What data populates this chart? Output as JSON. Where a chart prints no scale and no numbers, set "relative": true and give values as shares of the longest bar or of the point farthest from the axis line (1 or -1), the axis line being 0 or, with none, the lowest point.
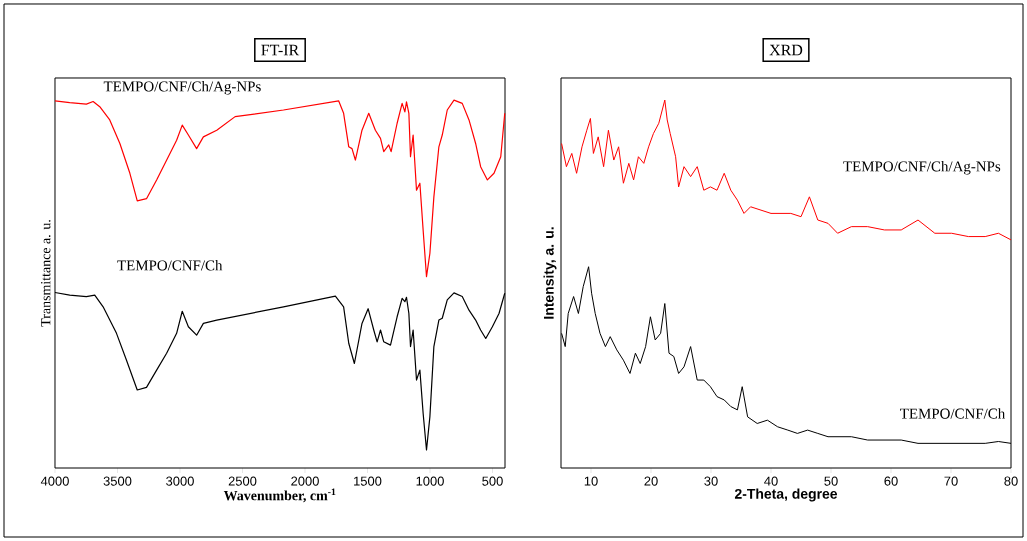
{
  "chart_data": [
    {
      "type": "line",
      "title": "FT-IR",
      "xlabel": "Wavenumber, cm$^{-1}$",
      "ylabel": "Transmittance a. u.",
      "relative": true,
      "xlim": [
        4000,
        400
      ],
      "xticks": [
        4000,
        3500,
        3000,
        2500,
        2000,
        1500,
        1000,
        500
      ],
      "series": [
        {
          "name": "TEMPO/CNF/Ch/Ag-NPs",
          "color": "#ff0000",
          "x": [
            4000,
            3882,
            3749,
            3695,
            3642,
            3562,
            3481,
            3401,
            3342,
            3268,
            3187,
            3107,
            3027,
            2982,
            2933,
            2867,
            2813,
            2706,
            2559,
            2172,
            1731,
            1691,
            1650,
            1624,
            1597,
            1544,
            1490,
            1437,
            1396,
            1370,
            1330,
            1311,
            1263,
            1223,
            1201,
            1188,
            1169,
            1156,
            1135,
            1108,
            1081,
            1055,
            1028,
            1001,
            969,
            929,
            902,
            862,
            808,
            742,
            688,
            635,
            595,
            541,
            488,
            434,
            402
          ],
          "values": [
            0.998,
            0.993,
            0.989,
            0.996,
            0.982,
            0.946,
            0.882,
            0.801,
            0.726,
            0.732,
            0.783,
            0.837,
            0.891,
            0.932,
            0.905,
            0.868,
            0.9,
            0.918,
            0.955,
            0.973,
            0.998,
            0.964,
            0.873,
            0.868,
            0.837,
            0.918,
            0.964,
            0.918,
            0.896,
            0.86,
            0.878,
            0.86,
            0.937,
            0.991,
            0.968,
            0.995,
            0.964,
            0.846,
            0.905,
            0.755,
            0.774,
            0.647,
            0.52,
            0.583,
            0.737,
            0.873,
            0.905,
            0.973,
            1.0,
            0.991,
            0.946,
            0.882,
            0.819,
            0.783,
            0.801,
            0.846,
            0.964
          ]
        },
        {
          "name": "TEMPO/CNF/Ch",
          "color": "#000000",
          "x": [
            4000,
            3882,
            3749,
            3682,
            3615,
            3508,
            3428,
            3342,
            3268,
            3187,
            3107,
            3027,
            2982,
            2933,
            2867,
            2813,
            2706,
            2172,
            1757,
            1691,
            1650,
            1605,
            1544,
            1495,
            1450,
            1423,
            1396,
            1370,
            1316,
            1263,
            1223,
            1201,
            1188,
            1169,
            1156,
            1135,
            1108,
            1081,
            1055,
            1028,
            1001,
            969,
            929,
            902,
            862,
            808,
            742,
            688,
            635,
            595,
            554,
            501,
            448,
            402
          ],
          "values": [
            0.477,
            0.47,
            0.466,
            0.47,
            0.438,
            0.366,
            0.293,
            0.212,
            0.219,
            0.266,
            0.312,
            0.366,
            0.426,
            0.384,
            0.361,
            0.393,
            0.402,
            0.438,
            0.467,
            0.438,
            0.339,
            0.284,
            0.393,
            0.433,
            0.375,
            0.343,
            0.375,
            0.343,
            0.334,
            0.411,
            0.461,
            0.452,
            0.464,
            0.42,
            0.33,
            0.375,
            0.239,
            0.266,
            0.149,
            0.049,
            0.139,
            0.33,
            0.402,
            0.407,
            0.457,
            0.476,
            0.466,
            0.429,
            0.402,
            0.375,
            0.352,
            0.384,
            0.42,
            0.475
          ]
        }
      ]
    },
    {
      "type": "line",
      "title": "XRD",
      "xlabel": "2-Theta, degree",
      "ylabel": "Intensity, a. u.",
      "relative": true,
      "xlim": [
        5,
        80
      ],
      "xticks": [
        10,
        20,
        30,
        40,
        50,
        60,
        70,
        80
      ],
      "series": [
        {
          "name": "TEMPO/CNF/Ch/Ag-NPs",
          "color": "#ff0000",
          "x": [
            5.1,
            5.9,
            6.8,
            7.6,
            8.5,
            9.3,
            9.9,
            10.4,
            11.2,
            12.1,
            12.9,
            13.8,
            14.6,
            15.4,
            16.3,
            17.1,
            17.9,
            18.8,
            19.6,
            20.4,
            21.3,
            22.3,
            22.7,
            23.2,
            24.1,
            24.6,
            25.5,
            26.6,
            27.7,
            28.8,
            29.9,
            31.0,
            32.2,
            33.3,
            34.4,
            35.5,
            36.6,
            38.3,
            40.0,
            41.6,
            43.3,
            45.0,
            46.4,
            47.8,
            49.5,
            51.1,
            53.4,
            56.1,
            58.9,
            61.7,
            64.5,
            67.3,
            70.1,
            72.9,
            75.7,
            77.9,
            80.0
          ],
          "values": [
            0.882,
            0.819,
            0.855,
            0.801,
            0.873,
            0.918,
            0.95,
            0.855,
            0.9,
            0.819,
            0.918,
            0.837,
            0.873,
            0.774,
            0.828,
            0.783,
            0.846,
            0.828,
            0.873,
            0.909,
            0.937,
            1.0,
            0.946,
            0.909,
            0.846,
            0.764,
            0.819,
            0.792,
            0.819,
            0.755,
            0.764,
            0.755,
            0.801,
            0.755,
            0.728,
            0.692,
            0.71,
            0.701,
            0.692,
            0.692,
            0.692,
            0.683,
            0.737,
            0.674,
            0.665,
            0.638,
            0.656,
            0.656,
            0.647,
            0.647,
            0.674,
            0.638,
            0.638,
            0.629,
            0.629,
            0.638,
            0.62
          ]
        },
        {
          "name": "TEMPO/CNF/Ch",
          "color": "#000000",
          "x": [
            5.1,
            5.7,
            6.2,
            7.1,
            7.9,
            8.7,
            9.6,
            10.1,
            10.7,
            11.5,
            12.4,
            13.2,
            14.3,
            15.4,
            16.5,
            17.4,
            18.2,
            19.1,
            19.9,
            20.7,
            21.6,
            22.3,
            23.0,
            23.8,
            24.6,
            25.5,
            26.6,
            27.7,
            28.8,
            29.9,
            31.0,
            32.2,
            33.3,
            34.4,
            35.2,
            36.1,
            37.7,
            39.4,
            41.1,
            42.8,
            44.4,
            46.1,
            47.8,
            49.5,
            51.1,
            53.4,
            56.1,
            58.9,
            61.7,
            64.5,
            67.3,
            70.1,
            72.9,
            75.7,
            77.9,
            80.0
          ],
          "values": [
            0.366,
            0.33,
            0.42,
            0.466,
            0.42,
            0.493,
            0.547,
            0.475,
            0.42,
            0.366,
            0.33,
            0.357,
            0.321,
            0.293,
            0.257,
            0.312,
            0.284,
            0.33,
            0.411,
            0.348,
            0.366,
            0.447,
            0.312,
            0.303,
            0.257,
            0.275,
            0.33,
            0.239,
            0.239,
            0.221,
            0.194,
            0.185,
            0.167,
            0.158,
            0.221,
            0.139,
            0.121,
            0.13,
            0.112,
            0.103,
            0.094,
            0.103,
            0.094,
            0.085,
            0.085,
            0.085,
            0.076,
            0.076,
            0.076,
            0.067,
            0.067,
            0.067,
            0.067,
            0.067,
            0.072,
            0.067
          ]
        }
      ]
    }
  ]
}
